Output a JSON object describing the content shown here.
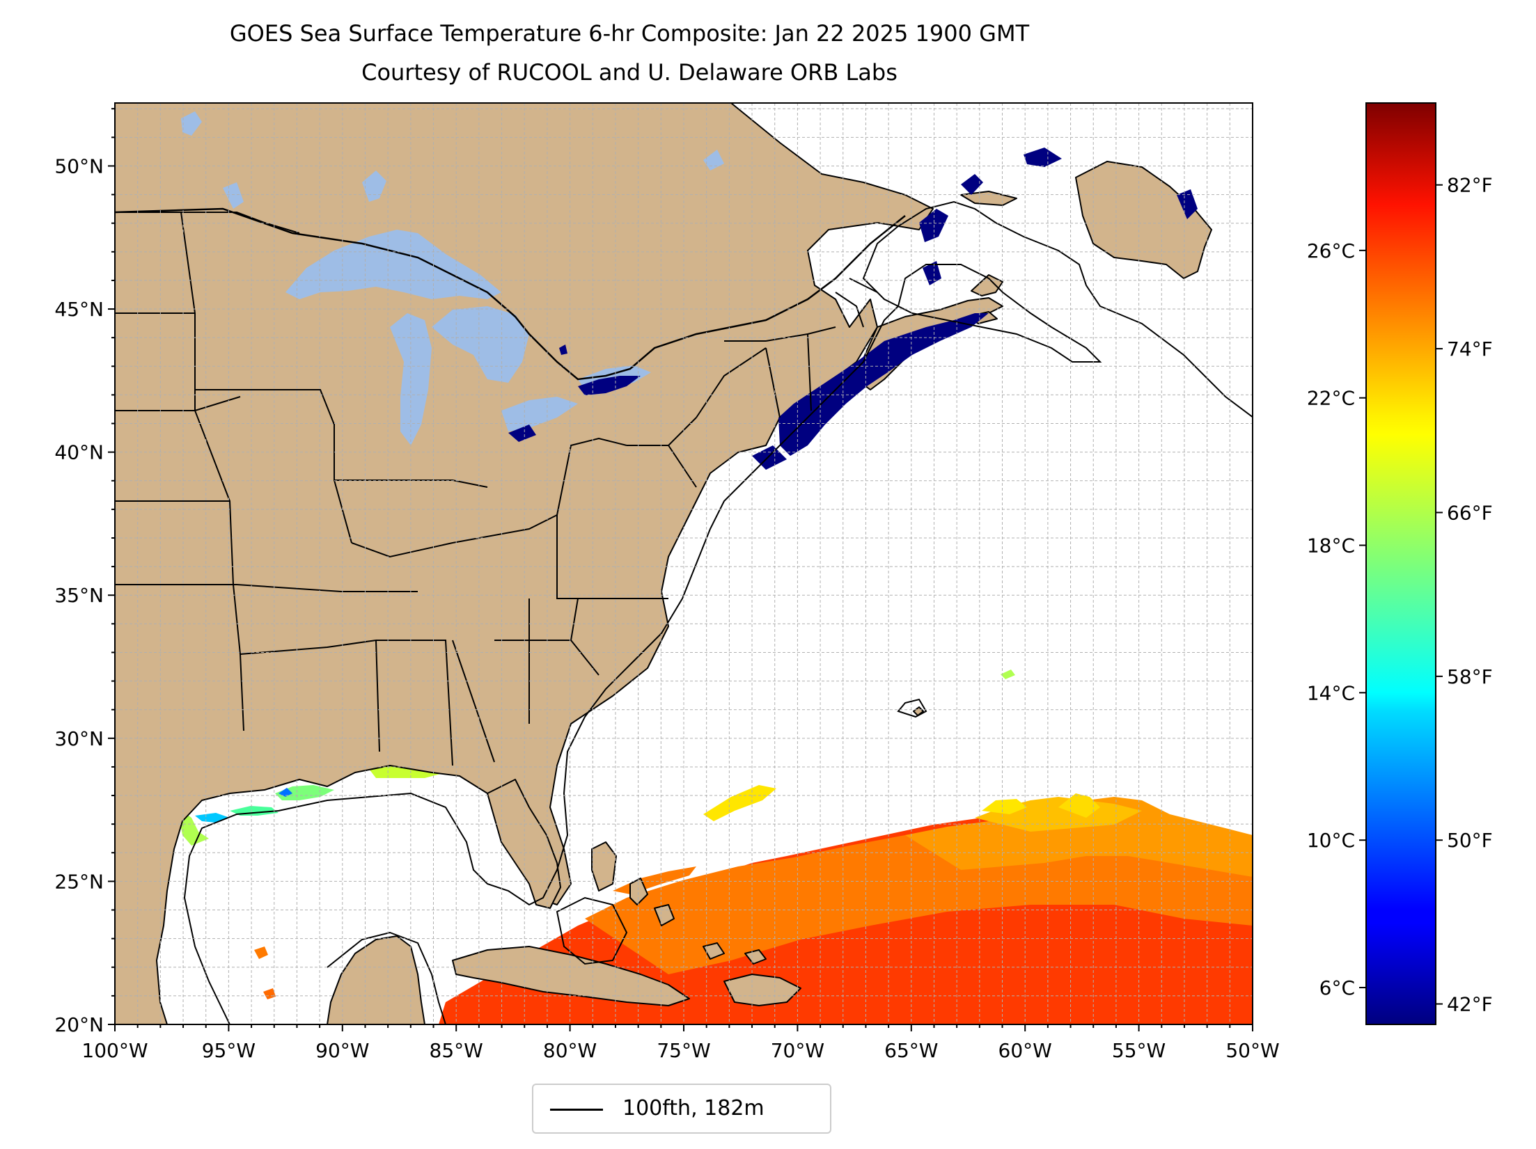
{
  "title": "GOES Sea Surface Temperature 6-hr Composite: Jan 22 2025 1900 GMT",
  "subtitle": "Courtesy of RUCOOL and U. Delaware ORB Labs",
  "map": {
    "lon_range": [
      -100,
      -50
    ],
    "lat_range": [
      20,
      52.2
    ],
    "lon_ticks": [
      "100°W",
      "95°W",
      "90°W",
      "85°W",
      "80°W",
      "75°W",
      "70°W",
      "65°W",
      "60°W",
      "55°W",
      "50°W"
    ],
    "lat_ticks": [
      "20°N",
      "25°N",
      "30°N",
      "35°N",
      "40°N",
      "45°N",
      "50°N"
    ],
    "lat_tick_values": [
      20,
      25,
      30,
      35,
      40,
      45,
      50
    ],
    "grid": "dashed, 1 degree",
    "land_color": "#d2b48c",
    "lake_color": "#9ebde6",
    "ocean_color": "#ffffff"
  },
  "colorbar": {
    "colormap": "jet",
    "celsius_ticks": [
      "6°C",
      "10°C",
      "14°C",
      "18°C",
      "22°C",
      "26°C"
    ],
    "celsius_values": [
      6,
      10,
      14,
      18,
      22,
      26
    ],
    "fahrenheit_ticks": [
      "42°F",
      "50°F",
      "58°F",
      "66°F",
      "74°F",
      "82°F"
    ],
    "fahrenheit_values": [
      42,
      50,
      58,
      66,
      74,
      82
    ],
    "range_c": [
      5.0,
      30.0
    ]
  },
  "legend": {
    "label": "100fth, 182m",
    "line_color": "#000000"
  }
}
